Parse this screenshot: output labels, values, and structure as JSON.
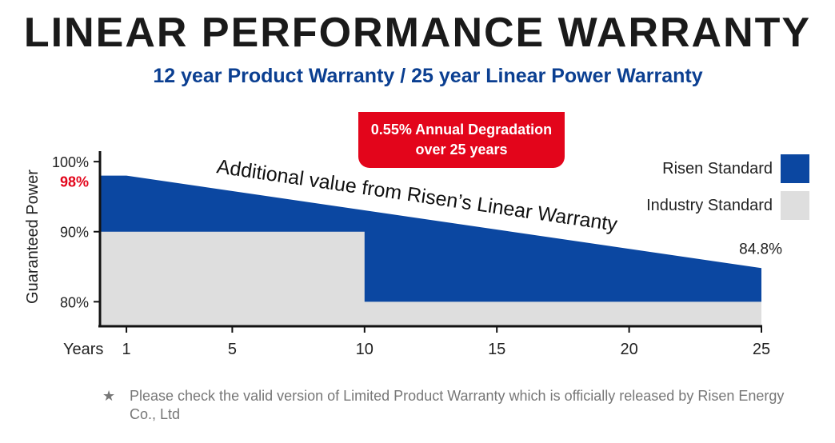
{
  "title": "LINEAR PERFORMANCE WARRANTY",
  "subtitle": "12 year Product Warranty / 25 year Linear Power Warranty",
  "badge": {
    "line1": "0.55% Annual Degradation",
    "line2": "over 25 years"
  },
  "annotation": "Additional value from Risen’s Linear Warranty",
  "end_label": "84.8%",
  "y_label_highlight": "98%",
  "note": {
    "star": "★",
    "text": "Please check the valid version of Limited Product Warranty which is officially released by Risen Energy Co., Ltd"
  },
  "colors": {
    "risen": "#0b47a1",
    "industry": "#dedede",
    "highlight": "#e3051b",
    "badge": "#e3051b",
    "subtitle": "#0b3f91"
  },
  "chart_data": {
    "type": "area",
    "title": "",
    "xlabel": "Years",
    "ylabel": "Guaranteed Power",
    "x_ticks": [
      1,
      5,
      10,
      15,
      20,
      25
    ],
    "y_ticks": [
      "100%",
      "90%",
      "80%"
    ],
    "y_tick_values": [
      100,
      90,
      80
    ],
    "xlim": [
      0,
      25
    ],
    "ylim": [
      76.5,
      101.5
    ],
    "legend_position": "right",
    "series": [
      {
        "name": "Risen Standard",
        "x": [
          0,
          1,
          25
        ],
        "y": [
          98,
          98,
          84.8
        ]
      },
      {
        "name": "Industry Standard",
        "x": [
          0,
          10,
          10,
          25
        ],
        "y": [
          90,
          90,
          80,
          80
        ]
      }
    ]
  }
}
